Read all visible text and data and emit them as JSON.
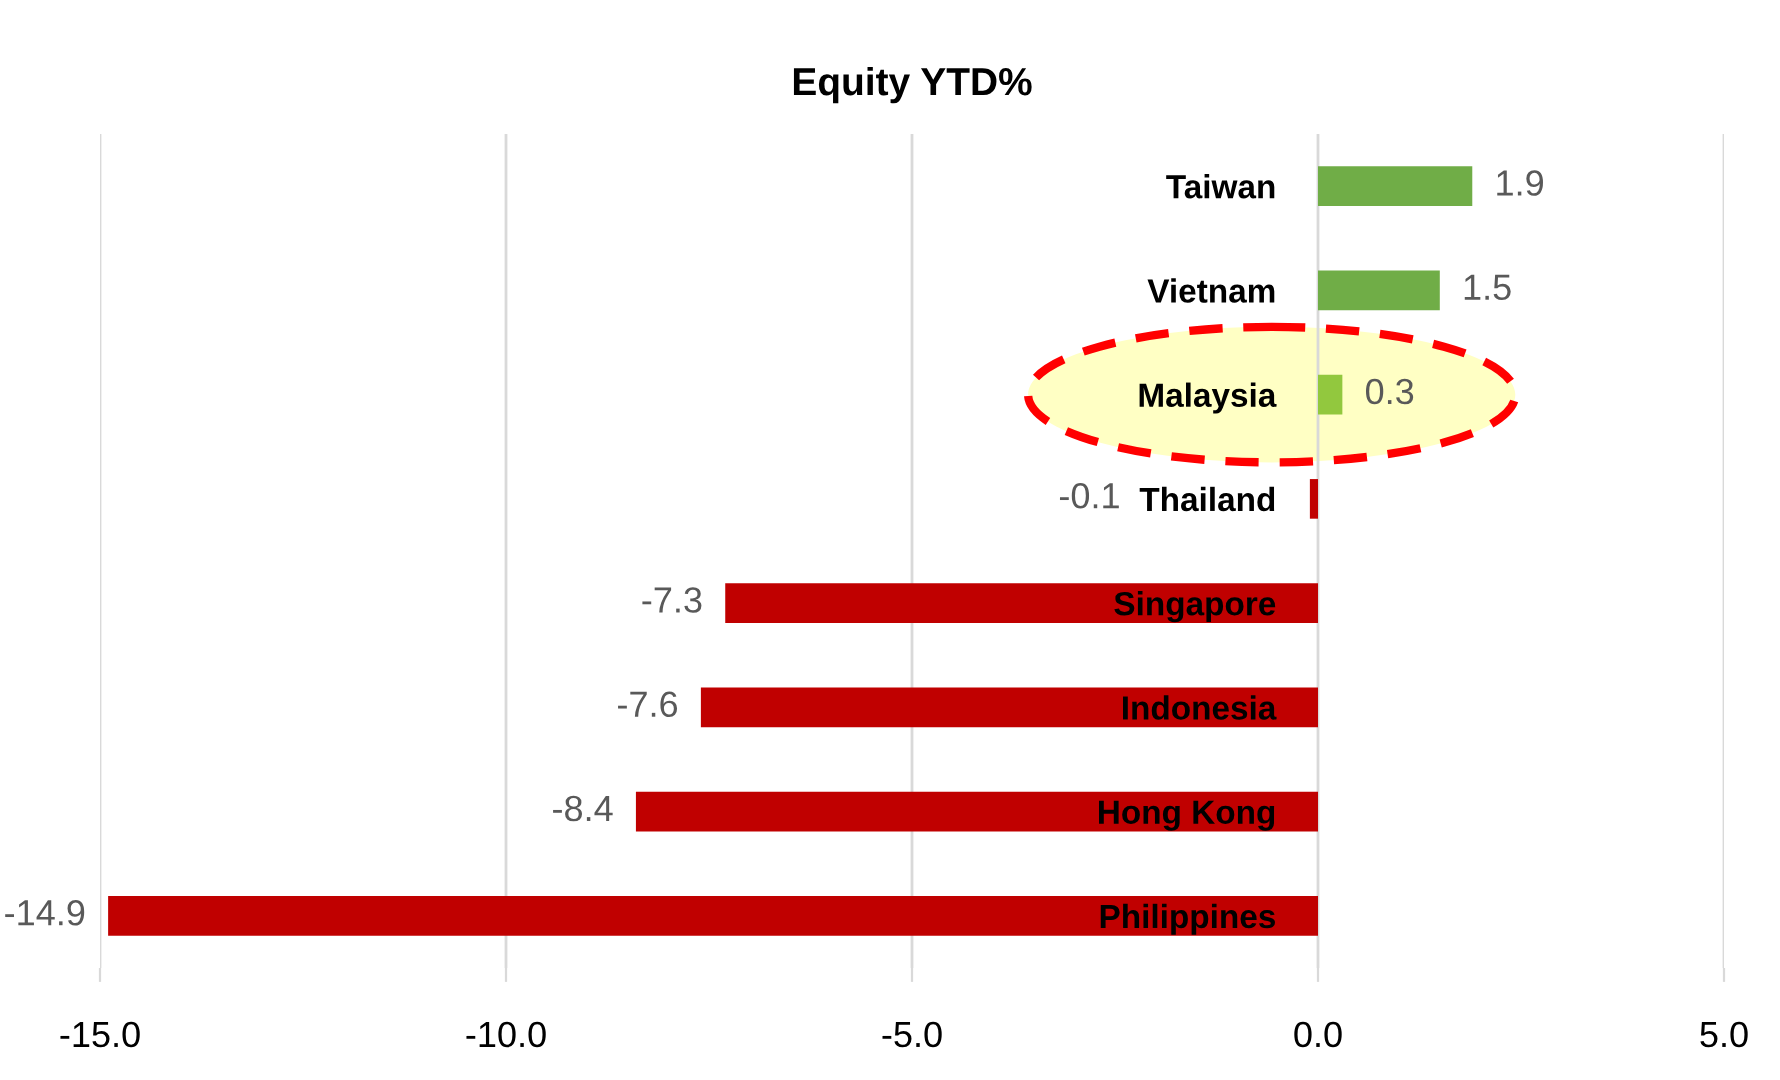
{
  "chart_data": {
    "type": "bar",
    "orientation": "horizontal",
    "title": "Equity YTD%",
    "categories": [
      "Taiwan",
      "Vietnam",
      "Malaysia",
      "Thailand",
      "Singapore",
      "Indonesia",
      "Hong Kong",
      "Philippines"
    ],
    "values": [
      1.9,
      1.5,
      0.3,
      -0.1,
      -7.3,
      -7.6,
      -8.4,
      -14.9
    ],
    "value_labels": [
      "1.9",
      "1.5",
      "0.3",
      null,
      "-7.3",
      "-7.6",
      "-8.4",
      "-14.9"
    ],
    "annotations": [
      "-0.1"
    ],
    "colors": [
      "#70ad47",
      "#70ad47",
      "#92c83e",
      "#c00000",
      "#c00000",
      "#c00000",
      "#c00000",
      "#c00000"
    ],
    "xlim": [
      -15,
      5
    ],
    "xticks": [
      {
        "value": -15,
        "label": "-15.0"
      },
      {
        "value": -10,
        "label": "-10.0"
      },
      {
        "value": -5,
        "label": "-5.0"
      },
      {
        "value": 0,
        "label": "0.0"
      },
      {
        "value": 5,
        "label": "5.0"
      }
    ],
    "grid": "x"
  }
}
